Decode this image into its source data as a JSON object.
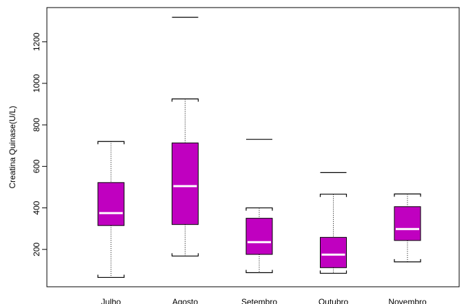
{
  "chart_data": {
    "type": "boxplot",
    "ylabel": "Creatina Quinase(U/L)",
    "yticks": [
      200,
      400,
      600,
      800,
      1000,
      1200
    ],
    "ylim": [
      20,
      1365
    ],
    "box_color": "#c000c0",
    "median_color": "#ffffff",
    "categories": [
      "Julho",
      "Agosto",
      "Setembro",
      "Outubro",
      "Novembro"
    ],
    "series": [
      {
        "category": "Julho",
        "low": 65,
        "q1": 315,
        "median": 375,
        "q3": 522,
        "high": 720,
        "outliers": []
      },
      {
        "category": "Agosto",
        "low": 168,
        "q1": 320,
        "median": 505,
        "q3": 713,
        "high": 925,
        "outliers": [
          1318
        ]
      },
      {
        "category": "Setembro",
        "low": 88,
        "q1": 176,
        "median": 235,
        "q3": 350,
        "high": 400,
        "outliers": [
          730
        ]
      },
      {
        "category": "Outubro",
        "low": 85,
        "q1": 112,
        "median": 175,
        "q3": 258,
        "high": 466,
        "outliers": [
          570
        ]
      },
      {
        "category": "Novembro",
        "low": 140,
        "q1": 243,
        "median": 298,
        "q3": 406,
        "high": 467,
        "outliers": []
      }
    ]
  }
}
